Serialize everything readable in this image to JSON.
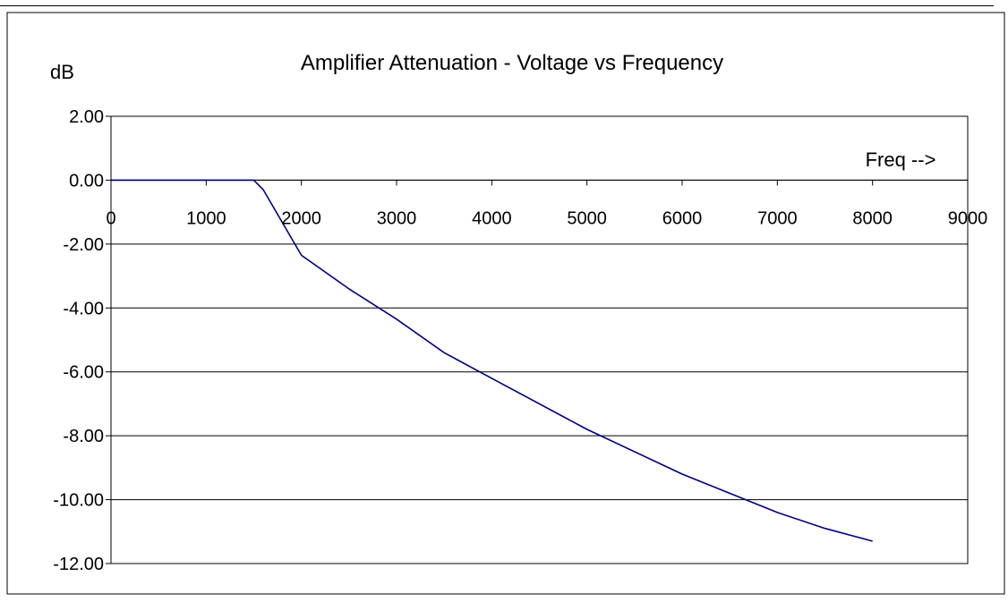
{
  "chart_data": {
    "type": "line",
    "title": "Amplifier Attenuation - Voltage vs Frequency",
    "ylabel": "dB",
    "xlabel": "Freq -->",
    "xlim": [
      0,
      9000
    ],
    "ylim": [
      -12,
      2
    ],
    "x_ticks": [
      "0",
      "1000",
      "2000",
      "3000",
      "4000",
      "5000",
      "6000",
      "7000",
      "8000",
      "9000"
    ],
    "y_ticks": [
      "2.00",
      "0.00",
      "-2.00",
      "-4.00",
      "-6.00",
      "-8.00",
      "-10.00",
      "-12.00"
    ],
    "grid": "horizontal major gridlines",
    "legend": "none",
    "series": [
      {
        "color": "#000080",
        "x": [
          0,
          1000,
          1500,
          1600,
          2000,
          2500,
          3000,
          3500,
          4000,
          5000,
          6000,
          7000,
          7500,
          8000
        ],
        "y": [
          0,
          0,
          0,
          -0.3,
          -2.35,
          -3.4,
          -4.35,
          -5.4,
          -6.2,
          -7.8,
          -9.2,
          -10.4,
          -10.9,
          -11.3
        ]
      }
    ]
  }
}
